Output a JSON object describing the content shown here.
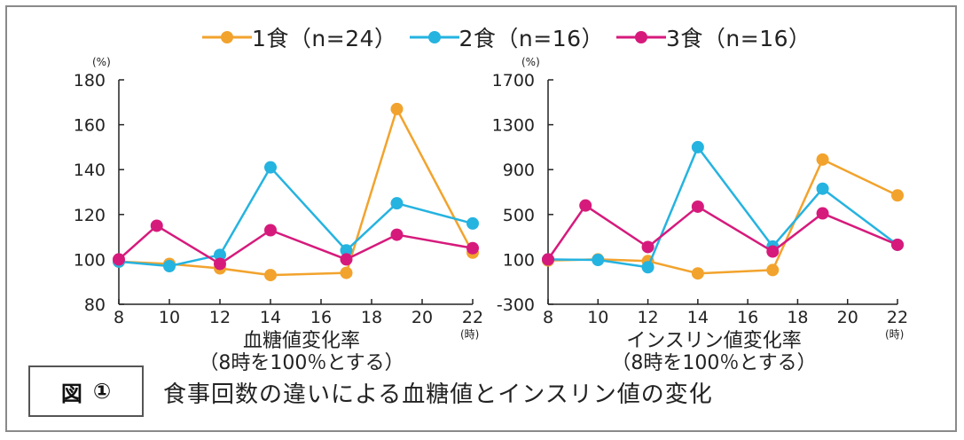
{
  "legend": [
    {
      "label": "1食（n=24）",
      "color": "#f2a32d"
    },
    {
      "label": "2食（n=16）",
      "color": "#25b3e0"
    },
    {
      "label": "3食（n=16）",
      "color": "#d61a7c"
    }
  ],
  "figure": {
    "box_label": "図",
    "box_number": "①",
    "title": "食事回数の違いによる血糖値とインスリン値の変化"
  },
  "chart_data": [
    {
      "type": "line",
      "title": "",
      "xlabel": "血糖値変化率",
      "xlabel2": "（8時を100％とする）",
      "ylabel": "",
      "y_unit": "(%)",
      "x_unit": "(時)",
      "xlim": [
        8,
        22
      ],
      "ylim": [
        80,
        180
      ],
      "xticks": [
        8,
        10,
        12,
        14,
        16,
        18,
        20,
        22
      ],
      "yticks": [
        80,
        100,
        120,
        140,
        160,
        180
      ],
      "grid": false,
      "legend": "top",
      "series": [
        {
          "name": "1食（n=24）",
          "color": "#f2a32d",
          "x": [
            8,
            10,
            12,
            14,
            17,
            19,
            22
          ],
          "y": [
            99,
            98,
            96,
            93,
            94,
            167,
            103
          ]
        },
        {
          "name": "2食（n=16）",
          "color": "#25b3e0",
          "x": [
            8,
            10,
            12,
            14,
            17,
            19,
            22
          ],
          "y": [
            99,
            97,
            102,
            141,
            104,
            125,
            116
          ]
        },
        {
          "name": "3食（n=16）",
          "color": "#d61a7c",
          "x": [
            8,
            9.5,
            12,
            14,
            17,
            19,
            22
          ],
          "y": [
            100,
            115,
            98,
            113,
            100,
            111,
            105
          ]
        }
      ]
    },
    {
      "type": "line",
      "title": "",
      "xlabel": "インスリン値変化率",
      "xlabel2": "（8時を100％とする）",
      "ylabel": "",
      "y_unit": "(%)",
      "x_unit": "(時)",
      "xlim": [
        8,
        22
      ],
      "ylim": [
        -300,
        1700
      ],
      "xticks": [
        8,
        10,
        12,
        14,
        16,
        18,
        20,
        22
      ],
      "yticks": [
        -300,
        100,
        500,
        900,
        1300,
        1700
      ],
      "grid": false,
      "legend": "top",
      "series": [
        {
          "name": "1食（n=24）",
          "color": "#f2a32d",
          "x": [
            8,
            10,
            12,
            14,
            17,
            19,
            22
          ],
          "y": [
            90,
            100,
            85,
            -25,
            5,
            990,
            670
          ]
        },
        {
          "name": "2食（n=16）",
          "color": "#25b3e0",
          "x": [
            8,
            10,
            12,
            14,
            17,
            19,
            22
          ],
          "y": [
            100,
            95,
            30,
            1100,
            215,
            730,
            230
          ]
        },
        {
          "name": "3食（n=16）",
          "color": "#d61a7c",
          "x": [
            8,
            9.5,
            12,
            14,
            17,
            19,
            22
          ],
          "y": [
            100,
            580,
            210,
            570,
            170,
            510,
            230
          ]
        }
      ]
    }
  ]
}
